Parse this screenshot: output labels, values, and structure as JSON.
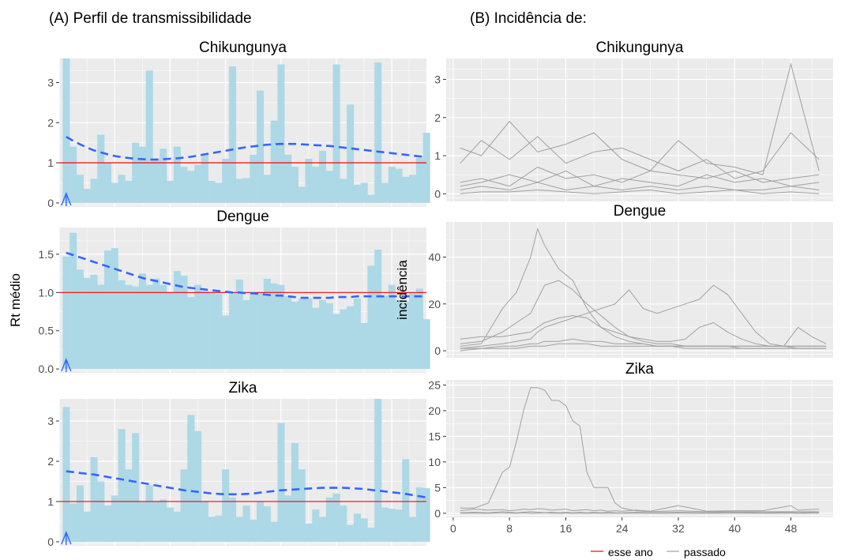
{
  "panel_a_title": "(A) Perfil de transmissibilidade",
  "panel_b_title": "(B) Incidência de:",
  "colors": {
    "bar": "#add8e6",
    "trend": "#3366ff",
    "threshold": "#ff0000",
    "history": "#a0a0a0",
    "panel_bg": "#ebebeb",
    "grid": "#ffffff"
  },
  "legend": {
    "this_year": "esse ano",
    "past": "passado"
  },
  "chart_data": [
    {
      "type": "bar",
      "panel": "A",
      "title": "Chikungunya",
      "ylabel": "",
      "xlim": [
        0,
        53
      ],
      "ylim": [
        -0.1,
        3.6
      ],
      "xticks": [
        0,
        8,
        16,
        24,
        32,
        40,
        48
      ],
      "yticks": [
        0,
        1,
        2,
        3
      ],
      "threshold": 1,
      "current_week": 1,
      "x": [
        1,
        2,
        3,
        4,
        5,
        6,
        7,
        8,
        9,
        10,
        11,
        12,
        13,
        14,
        15,
        16,
        17,
        18,
        19,
        20,
        21,
        22,
        23,
        24,
        25,
        26,
        27,
        28,
        29,
        30,
        31,
        32,
        33,
        34,
        35,
        36,
        37,
        38,
        39,
        40,
        41,
        42,
        43,
        44,
        45,
        46,
        47,
        48,
        49,
        50,
        51,
        52,
        53
      ],
      "values": [
        3.6,
        1.4,
        0.7,
        0.35,
        0.6,
        1.7,
        1.0,
        0.5,
        0.7,
        0.55,
        1.5,
        1.4,
        3.3,
        1.1,
        1.35,
        0.55,
        1.4,
        0.9,
        0.8,
        0.95,
        1.2,
        0.55,
        0.5,
        1.1,
        3.4,
        0.6,
        0.62,
        1.2,
        2.8,
        0.7,
        2.05,
        3.45,
        1.2,
        0.9,
        0.4,
        1.1,
        0.9,
        1.3,
        0.8,
        3.45,
        0.6,
        2.45,
        0.45,
        0.5,
        0.2,
        3.5,
        0.5,
        0.9,
        0.85,
        0.65,
        0.7,
        1.12,
        1.75
      ],
      "trend": [
        1.65,
        1.55,
        1.46,
        1.38,
        1.31,
        1.26,
        1.21,
        1.17,
        1.14,
        1.12,
        1.1,
        1.09,
        1.08,
        1.08,
        1.09,
        1.1,
        1.11,
        1.13,
        1.15,
        1.18,
        1.21,
        1.24,
        1.27,
        1.3,
        1.33,
        1.36,
        1.39,
        1.41,
        1.43,
        1.45,
        1.46,
        1.47,
        1.47,
        1.47,
        1.46,
        1.45,
        1.44,
        1.43,
        1.42,
        1.4,
        1.38,
        1.36,
        1.34,
        1.32,
        1.3,
        1.28,
        1.26,
        1.24,
        1.22,
        1.2,
        1.18,
        1.16,
        1.15
      ]
    },
    {
      "type": "bar",
      "panel": "A",
      "title": "Dengue",
      "ylabel": "Rt médio",
      "xlim": [
        0,
        53
      ],
      "ylim": [
        -0.05,
        1.85
      ],
      "xticks": [
        0,
        8,
        16,
        24,
        32,
        40,
        48
      ],
      "yticks": [
        0.0,
        0.5,
        1.0,
        1.5
      ],
      "ytick_labels": [
        "0.0",
        "0.5",
        "1.0",
        "1.5"
      ],
      "threshold": 1,
      "current_week": 1,
      "x": [
        1,
        2,
        3,
        4,
        5,
        6,
        7,
        8,
        9,
        10,
        11,
        12,
        13,
        14,
        15,
        16,
        17,
        18,
        19,
        20,
        21,
        22,
        23,
        24,
        25,
        26,
        27,
        28,
        29,
        30,
        31,
        32,
        33,
        34,
        35,
        36,
        37,
        38,
        39,
        40,
        41,
        42,
        43,
        44,
        45,
        46,
        47,
        48,
        49,
        50,
        51,
        52,
        53
      ],
      "values": [
        1.47,
        1.78,
        1.3,
        1.19,
        1.23,
        1.1,
        1.55,
        1.58,
        1.16,
        1.1,
        1.08,
        1.25,
        1.1,
        1.18,
        1.1,
        1.0,
        1.28,
        1.22,
        0.94,
        1.1,
        1.02,
        1.0,
        0.98,
        0.7,
        1.0,
        1.17,
        0.9,
        0.98,
        1.0,
        1.18,
        1.12,
        1.1,
        0.95,
        0.88,
        0.92,
        0.92,
        0.8,
        0.9,
        0.86,
        0.72,
        0.78,
        0.82,
        0.92,
        0.6,
        1.35,
        1.56,
        0.96,
        1.1,
        0.9,
        0.88,
        1.0,
        1.05,
        0.65
      ],
      "trend": [
        1.52,
        1.49,
        1.46,
        1.43,
        1.4,
        1.37,
        1.34,
        1.31,
        1.28,
        1.25,
        1.22,
        1.19,
        1.17,
        1.15,
        1.13,
        1.11,
        1.09,
        1.07,
        1.06,
        1.05,
        1.04,
        1.03,
        1.02,
        1.01,
        1.0,
        1.0,
        0.99,
        0.99,
        0.98,
        0.97,
        0.96,
        0.96,
        0.95,
        0.94,
        0.93,
        0.93,
        0.93,
        0.93,
        0.93,
        0.94,
        0.94,
        0.94,
        0.95,
        0.95,
        0.95,
        0.95,
        0.95,
        0.95,
        0.95,
        0.95,
        0.95,
        0.95,
        0.95
      ]
    },
    {
      "type": "bar",
      "panel": "A",
      "title": "Zika",
      "ylabel": "",
      "xlim": [
        0,
        53
      ],
      "ylim": [
        -0.1,
        3.55
      ],
      "xticks": [
        0,
        8,
        16,
        24,
        32,
        40,
        48
      ],
      "yticks": [
        0,
        1,
        2,
        3
      ],
      "threshold": 1,
      "current_week": 1,
      "x": [
        1,
        2,
        3,
        4,
        5,
        6,
        7,
        8,
        9,
        10,
        11,
        12,
        13,
        14,
        15,
        16,
        17,
        18,
        19,
        20,
        21,
        22,
        23,
        24,
        25,
        26,
        27,
        28,
        29,
        30,
        31,
        32,
        33,
        34,
        35,
        36,
        37,
        38,
        39,
        40,
        41,
        42,
        43,
        44,
        45,
        46,
        47,
        48,
        49,
        50,
        51,
        52,
        53
      ],
      "values": [
        3.35,
        0.95,
        1.4,
        0.75,
        2.1,
        1.5,
        0.9,
        1.15,
        2.8,
        1.8,
        2.7,
        1.0,
        1.4,
        1.0,
        1.05,
        0.85,
        0.75,
        1.8,
        3.15,
        2.75,
        1.0,
        0.62,
        0.65,
        1.8,
        1.1,
        0.62,
        0.9,
        0.55,
        1.0,
        0.88,
        0.5,
        2.95,
        1.15,
        2.45,
        1.8,
        0.45,
        0.8,
        0.62,
        1.1,
        1.2,
        0.9,
        0.42,
        0.7,
        0.58,
        0.35,
        3.55,
        0.85,
        0.82,
        0.8,
        2.05,
        0.62,
        1.35,
        1.33
      ],
      "trend": [
        1.75,
        1.73,
        1.71,
        1.69,
        1.67,
        1.64,
        1.61,
        1.58,
        1.55,
        1.52,
        1.49,
        1.46,
        1.43,
        1.4,
        1.37,
        1.34,
        1.31,
        1.28,
        1.26,
        1.24,
        1.22,
        1.2,
        1.19,
        1.18,
        1.18,
        1.18,
        1.19,
        1.2,
        1.22,
        1.24,
        1.26,
        1.28,
        1.29,
        1.3,
        1.31,
        1.32,
        1.33,
        1.34,
        1.34,
        1.34,
        1.34,
        1.33,
        1.32,
        1.31,
        1.29,
        1.27,
        1.25,
        1.23,
        1.21,
        1.19,
        1.16,
        1.13,
        1.1
      ]
    },
    {
      "type": "line",
      "panel": "B",
      "title": "Chikungunya",
      "ylabel": "",
      "xlim": [
        -1,
        54
      ],
      "ylim": [
        -0.2,
        3.55
      ],
      "xticks": [
        0,
        8,
        16,
        24,
        32,
        40,
        48
      ],
      "yticks": [
        0,
        1,
        2,
        3
      ],
      "x": [
        1,
        4,
        8,
        12,
        16,
        20,
        24,
        28,
        32,
        36,
        40,
        44,
        48,
        52
      ],
      "series": [
        {
          "values": [
            1.2,
            1.0,
            1.9,
            1.1,
            1.3,
            1.6,
            0.9,
            0.6,
            1.4,
            0.8,
            0.7,
            0.5,
            3.4,
            0.6
          ]
        },
        {
          "values": [
            0.8,
            1.4,
            0.9,
            1.5,
            0.8,
            1.1,
            1.2,
            0.9,
            0.6,
            0.9,
            0.4,
            0.6,
            1.6,
            0.9
          ]
        },
        {
          "values": [
            0.3,
            0.4,
            0.2,
            0.7,
            0.4,
            0.5,
            0.3,
            0.6,
            0.5,
            0.4,
            0.6,
            0.3,
            0.4,
            0.5
          ]
        },
        {
          "values": [
            0.2,
            0.3,
            0.5,
            0.3,
            0.6,
            0.2,
            0.4,
            0.3,
            0.2,
            0.5,
            0.3,
            0.4,
            0.2,
            0.3
          ]
        },
        {
          "values": [
            0.1,
            0.2,
            0.1,
            0.3,
            0.1,
            0.2,
            0.1,
            0.2,
            0.1,
            0.2,
            0.1,
            0.1,
            0.2,
            0.1
          ]
        },
        {
          "values": [
            0.0,
            0.05,
            0.05,
            0.1,
            0.05,
            0.0,
            0.05,
            0.1,
            0.0,
            0.05,
            0.1,
            0.0,
            0.05,
            0.0
          ]
        }
      ]
    },
    {
      "type": "line",
      "panel": "B",
      "title": "Dengue",
      "ylabel": "incidência",
      "xlim": [
        -1,
        54
      ],
      "ylim": [
        -3,
        55
      ],
      "xticks": [
        0,
        8,
        16,
        24,
        32,
        40,
        48
      ],
      "yticks": [
        0,
        20,
        40
      ],
      "x": [
        1,
        4,
        7,
        9,
        11,
        12,
        13,
        15,
        17,
        19,
        21,
        23,
        25,
        27,
        29,
        31,
        33,
        35,
        37,
        39,
        41,
        43,
        45,
        47,
        49,
        51,
        53
      ],
      "series": [
        {
          "values": [
            2,
            3,
            18,
            25,
            40,
            52,
            45,
            35,
            30,
            18,
            10,
            6,
            4,
            3,
            2,
            2,
            2,
            2,
            2,
            2,
            1,
            1,
            1,
            1,
            1,
            1,
            1
          ]
        },
        {
          "values": [
            3,
            4,
            8,
            12,
            16,
            22,
            28,
            30,
            26,
            20,
            15,
            10,
            6,
            4,
            3,
            3,
            2,
            2,
            2,
            2,
            2,
            2,
            2,
            2,
            2,
            2,
            2
          ]
        },
        {
          "values": [
            1,
            2,
            3,
            4,
            5,
            8,
            10,
            12,
            14,
            16,
            18,
            20,
            26,
            18,
            16,
            18,
            20,
            22,
            28,
            24,
            16,
            8,
            3,
            2,
            1,
            1,
            1
          ]
        },
        {
          "values": [
            5,
            6,
            6,
            7,
            8,
            10,
            12,
            14,
            15,
            14,
            10,
            8,
            6,
            5,
            4,
            4,
            5,
            10,
            12,
            8,
            5,
            3,
            2,
            2,
            10,
            6,
            3
          ]
        },
        {
          "values": [
            1,
            1,
            2,
            2,
            3,
            3,
            4,
            4,
            5,
            4,
            4,
            3,
            3,
            3,
            2,
            2,
            2,
            2,
            2,
            2,
            2,
            2,
            2,
            2,
            2,
            2,
            2
          ]
        },
        {
          "values": [
            0,
            1,
            1,
            1,
            2,
            2,
            2,
            3,
            3,
            3,
            2,
            2,
            2,
            2,
            2,
            2,
            1,
            1,
            1,
            1,
            1,
            1,
            1,
            1,
            1,
            1,
            1
          ]
        }
      ]
    },
    {
      "type": "line",
      "panel": "B",
      "title": "Zika",
      "ylabel": "",
      "xlim": [
        -1,
        54
      ],
      "ylim": [
        -0.8,
        26
      ],
      "xticks": [
        0,
        8,
        16,
        24,
        32,
        40,
        48
      ],
      "xtick_labels": [
        "0",
        "8",
        "16",
        "24",
        "32",
        "40",
        "48"
      ],
      "yticks": [
        0,
        5,
        10,
        15,
        20,
        25
      ],
      "x": [
        1,
        3,
        5,
        7,
        8,
        9,
        10,
        11,
        12,
        13,
        14,
        15,
        16,
        17,
        18,
        19,
        20,
        21,
        22,
        23,
        24,
        26,
        28,
        32,
        36,
        40,
        44,
        48,
        49,
        52
      ],
      "series": [
        {
          "values": [
            1,
            1,
            2,
            8,
            9,
            14,
            20,
            24.5,
            24.5,
            24,
            22,
            22,
            21,
            18,
            17,
            8,
            5,
            5,
            5,
            2,
            1,
            0.5,
            0.3,
            0.5,
            0.3,
            0.3,
            0.3,
            0.3,
            0.3,
            0.3
          ]
        },
        {
          "values": [
            0.5,
            0.8,
            0.6,
            0.7,
            0.5,
            0.6,
            0.8,
            0.7,
            0.9,
            0.8,
            0.6,
            0.7,
            0.8,
            0.5,
            0.6,
            0.7,
            0.5,
            0.6,
            0.4,
            0.5,
            0.4,
            0.6,
            0.4,
            1.5,
            0.4,
            0.5,
            0.5,
            1.5,
            0.6,
            0.8
          ]
        },
        {
          "values": [
            0.1,
            0.2,
            0.1,
            0.3,
            0.2,
            0.1,
            0.2,
            0.3,
            0.2,
            0.1,
            0.2,
            0.1,
            0.2,
            0.1,
            0.2,
            0.1,
            0.2,
            0.1,
            0.2,
            0.1,
            0.1,
            0.2,
            0.1,
            0.2,
            0.1,
            0.2,
            0.1,
            0.2,
            0.1,
            0.2
          ]
        },
        {
          "values": [
            0,
            0,
            0,
            0.1,
            0,
            0,
            0.1,
            0,
            0,
            0.1,
            0,
            0,
            0,
            0,
            0,
            0,
            0,
            0,
            0,
            0,
            0,
            0,
            0,
            0,
            0,
            0,
            0,
            0,
            0,
            0
          ]
        }
      ]
    }
  ]
}
